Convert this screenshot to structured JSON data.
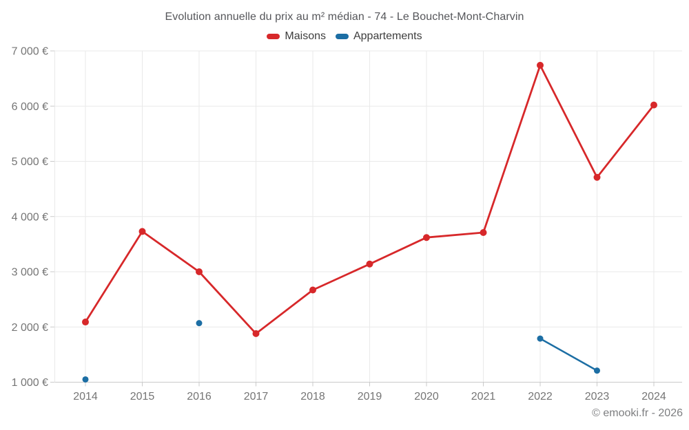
{
  "footer": {
    "copyright": "© emooki.fr - 2026"
  },
  "legend": {
    "items": [
      {
        "label": "Maisons",
        "color": "#d7282a"
      },
      {
        "label": "Appartements",
        "color": "#1c6ea4"
      }
    ]
  },
  "colors": {
    "accent_red": "#d7282a",
    "accent_blue": "#1c6ea4",
    "grid": "#e9e9e9",
    "axis": "#c9c9c9",
    "tick_text": "#757575",
    "title_text": "#55565a",
    "background": "#ffffff"
  },
  "chart_data": {
    "type": "line",
    "title": "Evolution annuelle du prix au m² médian - 74 - Le Bouchet-Mont-Charvin",
    "x": [
      "2014",
      "2015",
      "2016",
      "2017",
      "2018",
      "2019",
      "2020",
      "2021",
      "2022",
      "2023",
      "2024"
    ],
    "series": [
      {
        "name": "Maisons",
        "color": "#d7282a",
        "marker_radius": 5,
        "line_width": 2.8,
        "values": [
          2090,
          3730,
          3000,
          1880,
          2670,
          3140,
          3620,
          3710,
          6740,
          4710,
          6020
        ]
      },
      {
        "name": "Appartements",
        "color": "#1c6ea4",
        "marker_radius": 4.5,
        "line_width": 2.5,
        "values": [
          1050,
          null,
          2070,
          null,
          null,
          null,
          null,
          null,
          1790,
          1210,
          null
        ]
      }
    ],
    "ylim": [
      1000,
      7000
    ],
    "yticks": [
      1000,
      2000,
      3000,
      4000,
      5000,
      6000,
      7000
    ],
    "ytick_labels": [
      "1 000 €",
      "2 000 €",
      "3 000 €",
      "4 000 €",
      "5 000 €",
      "6 000 €",
      "7 000 €"
    ],
    "ylabel": "",
    "xlabel": "",
    "grid": true,
    "legend_position": "top"
  }
}
